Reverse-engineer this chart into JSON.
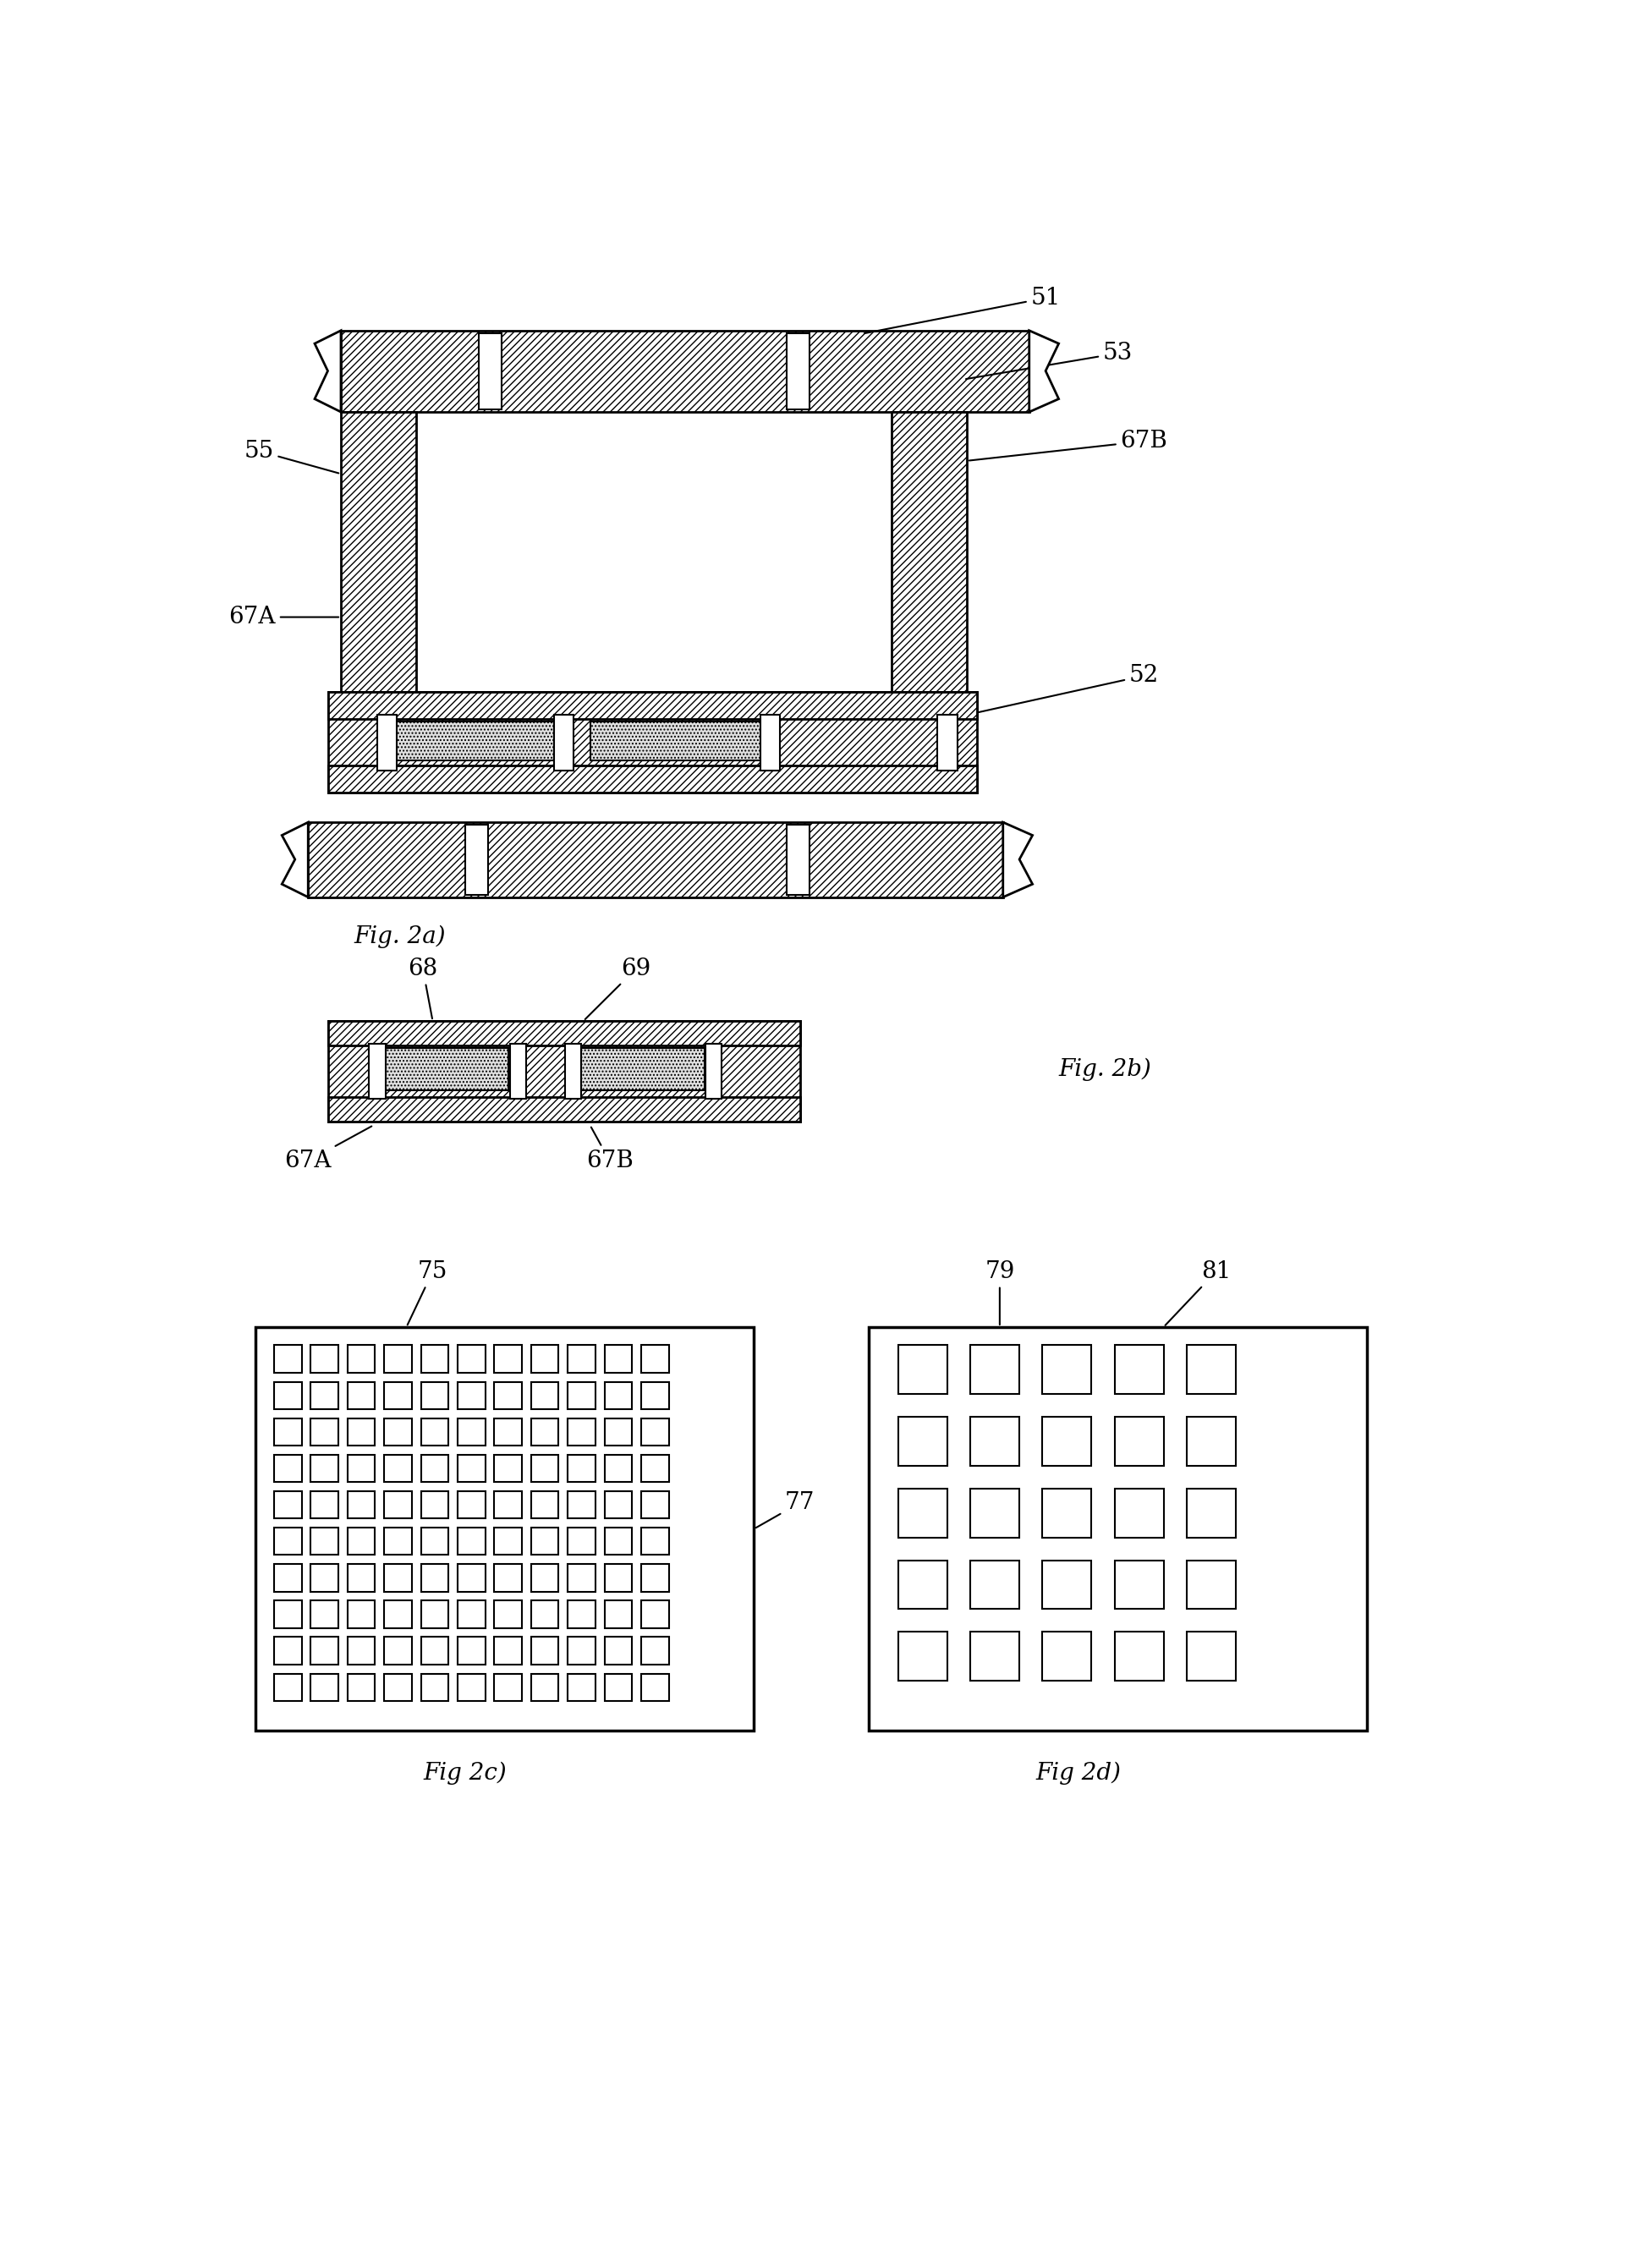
{
  "fig_width": 19.53,
  "fig_height": 26.79,
  "bg_color": "#ffffff",
  "labels": {
    "fig2a": "Fig. 2a)",
    "fig2b": "Fig. 2b)",
    "fig2c": "Fig 2c)",
    "fig2d": "Fig 2d)",
    "l51": "51",
    "l52": "52",
    "l53": "53",
    "l55": "55",
    "l67A_top": "67A",
    "l67B_top": "67B",
    "l68": "68",
    "l69": "69",
    "l67A_bot": "67A",
    "l67B_bot": "67B",
    "l75": "75",
    "l77": "77",
    "l79": "79",
    "l81": "81"
  }
}
